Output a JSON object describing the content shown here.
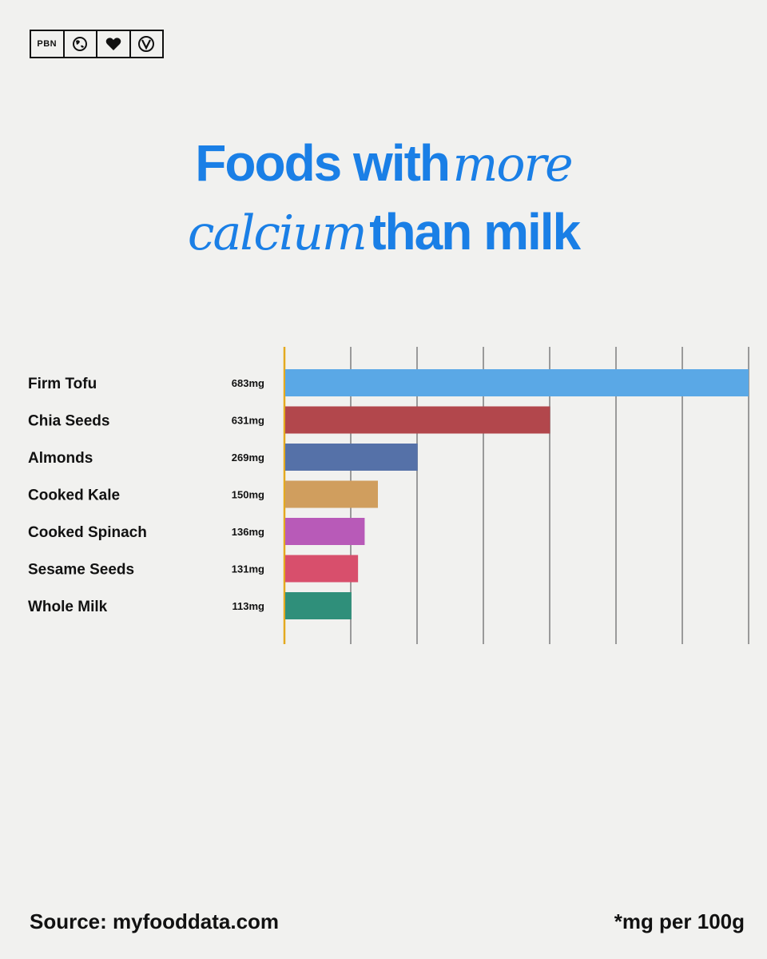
{
  "brand": {
    "logo_text": "PBN",
    "icons": [
      "globe-icon",
      "heart-icon",
      "vegan-v-icon"
    ]
  },
  "title": {
    "part1": "Foods with",
    "part2_italic": "more",
    "part3_italic": "calcium",
    "part4": "than milk"
  },
  "chart_data": {
    "type": "bar",
    "orientation": "horizontal",
    "categories": [
      "Firm Tofu",
      "Chia Seeds",
      "Almonds",
      "Cooked Kale",
      "Cooked Spinach",
      "Sesame Seeds",
      "Whole Milk"
    ],
    "values": [
      683,
      631,
      269,
      150,
      136,
      131,
      113
    ],
    "value_labels": [
      "683mg",
      "631mg",
      "269mg",
      "150mg",
      "136mg",
      "131mg",
      "113mg"
    ],
    "bar_lengths": [
      700,
      400,
      200,
      140,
      120,
      110,
      100
    ],
    "colors": [
      "#5aa8e6",
      "#b2474c",
      "#5571a8",
      "#d09e5e",
      "#b85ab8",
      "#d84f6c",
      "#2f8f7a"
    ],
    "grid": true
  },
  "footer": {
    "source": "Source: myfooddata.com",
    "unit_note": "*mg per 100g"
  }
}
